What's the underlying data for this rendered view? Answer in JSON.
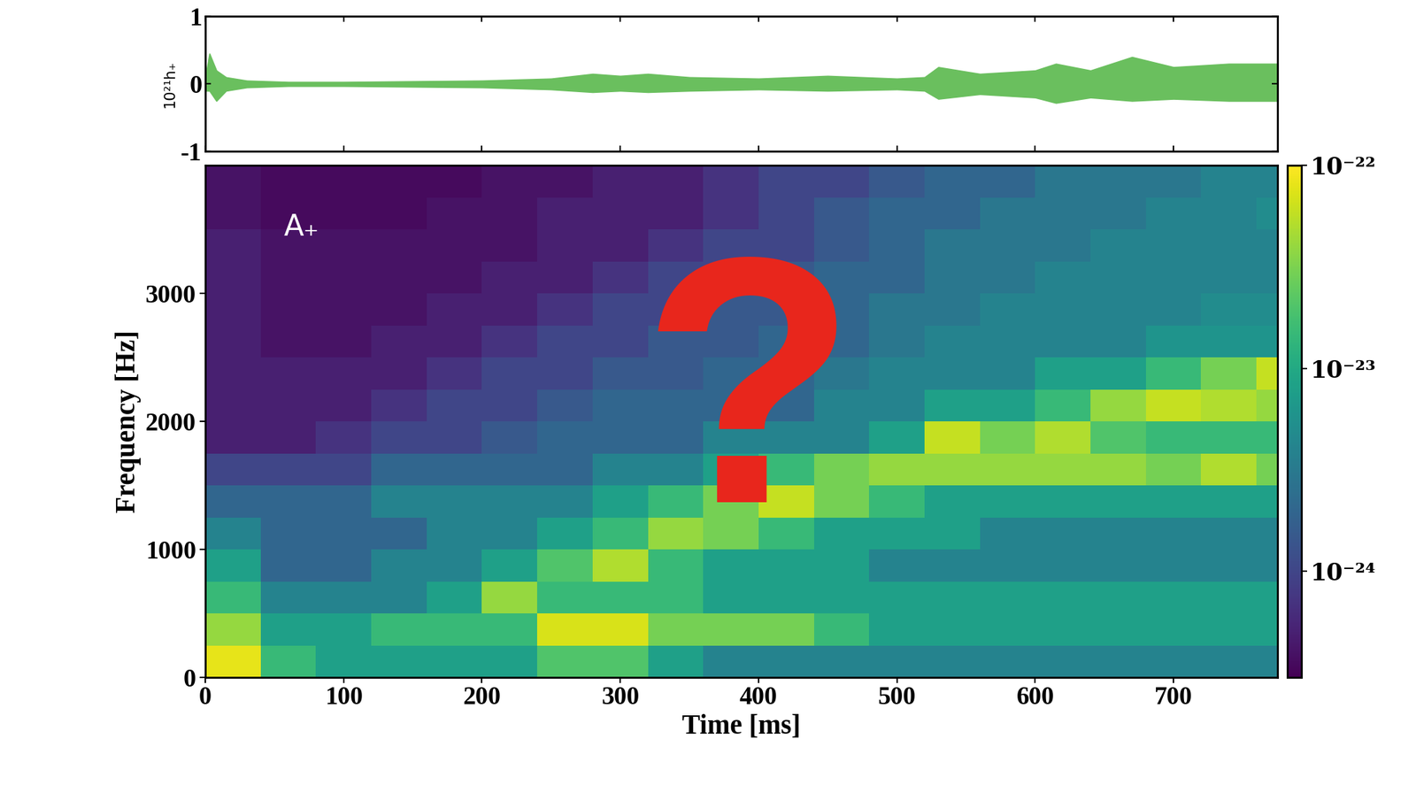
{
  "chart_data": [
    {
      "type": "line",
      "ylabel": "10²¹h₊",
      "x": [
        0,
        3,
        8,
        15,
        30,
        60,
        100,
        150,
        200,
        250,
        280,
        300,
        320,
        350,
        400,
        450,
        500,
        520,
        530,
        560,
        600,
        615,
        640,
        670,
        700,
        740,
        775
      ],
      "upper": [
        0.1,
        0.45,
        0.2,
        0.1,
        0.05,
        0.03,
        0.03,
        0.04,
        0.05,
        0.08,
        0.15,
        0.12,
        0.15,
        0.1,
        0.08,
        0.12,
        0.08,
        0.1,
        0.25,
        0.15,
        0.2,
        0.3,
        0.2,
        0.4,
        0.25,
        0.3,
        0.3
      ],
      "lower": [
        -0.1,
        -0.1,
        -0.25,
        -0.1,
        -0.05,
        -0.03,
        -0.03,
        -0.04,
        -0.05,
        -0.08,
        -0.12,
        -0.1,
        -0.12,
        -0.1,
        -0.08,
        -0.1,
        -0.08,
        -0.1,
        -0.22,
        -0.15,
        -0.2,
        -0.28,
        -0.2,
        -0.25,
        -0.22,
        -0.25,
        -0.25
      ],
      "color": "#6abf5e",
      "xlim": [
        0,
        775
      ],
      "xticks": [
        0,
        100,
        200,
        300,
        400,
        500,
        600,
        700
      ],
      "ylim": [
        -1,
        1
      ],
      "yticks": [
        -1,
        0,
        1
      ],
      "tick_labels": "y"
    },
    {
      "type": "heatmap",
      "xlabel": "Time [ms]",
      "ylabel": "Frequency [Hz]",
      "x_edges": [
        0,
        40,
        80,
        120,
        160,
        200,
        240,
        280,
        320,
        360,
        400,
        440,
        480,
        520,
        560,
        600,
        640,
        680,
        720,
        760,
        775
      ],
      "y_edges": [
        0,
        250,
        500,
        750,
        1000,
        1250,
        1500,
        1750,
        2000,
        2250,
        2500,
        2750,
        3000,
        3250,
        3500,
        3750,
        4000
      ],
      "cells": [
        [
          8e-23,
          1.5e-23,
          8e-24,
          8e-24,
          8e-24,
          8e-24,
          2e-23,
          2e-23,
          8e-24,
          4e-24,
          4e-24,
          4e-24,
          4e-24,
          4e-24,
          4e-24,
          4e-24,
          4e-24,
          4e-24,
          4e-24,
          4e-24
        ],
        [
          4e-23,
          8e-24,
          8e-24,
          1.5e-23,
          1.5e-23,
          1.5e-23,
          7e-23,
          7e-23,
          3e-23,
          3e-23,
          3e-23,
          1.5e-23,
          8e-24,
          8e-24,
          8e-24,
          8e-24,
          8e-24,
          8e-24,
          8e-24,
          8e-24
        ],
        [
          1.5e-23,
          4e-24,
          4e-24,
          4e-24,
          8e-24,
          4e-23,
          1.5e-23,
          1.5e-23,
          1.5e-23,
          8e-24,
          8e-24,
          8e-24,
          8e-24,
          8e-24,
          8e-24,
          8e-24,
          8e-24,
          8e-24,
          8e-24,
          8e-24
        ],
        [
          8e-24,
          2e-24,
          2e-24,
          4e-24,
          4e-24,
          8e-24,
          2e-23,
          5e-23,
          1.5e-23,
          8e-24,
          8e-24,
          8e-24,
          4e-24,
          4e-24,
          4e-24,
          4e-24,
          4e-24,
          4e-24,
          4e-24,
          4e-24
        ],
        [
          4e-24,
          2e-24,
          2e-24,
          2e-24,
          4e-24,
          4e-24,
          8e-24,
          1.5e-23,
          4e-23,
          3e-23,
          1.5e-23,
          8e-24,
          8e-24,
          8e-24,
          4e-24,
          4e-24,
          4e-24,
          4e-24,
          4e-24,
          4e-24
        ],
        [
          2e-24,
          2e-24,
          2e-24,
          4e-24,
          4e-24,
          4e-24,
          4e-24,
          8e-24,
          1.5e-23,
          3e-23,
          6e-23,
          3e-23,
          1.5e-23,
          8e-24,
          8e-24,
          8e-24,
          8e-24,
          8e-24,
          8e-24,
          8e-24
        ],
        [
          1e-24,
          1e-24,
          1e-24,
          2e-24,
          2e-24,
          2e-24,
          2e-24,
          4e-24,
          4e-24,
          8e-24,
          1.5e-23,
          3e-23,
          4e-23,
          4e-23,
          4e-23,
          4e-23,
          4e-23,
          3e-23,
          5e-23,
          3e-23
        ],
        [
          5e-25,
          5e-25,
          7e-25,
          1e-24,
          1e-24,
          1.5e-24,
          2e-24,
          2e-24,
          2e-24,
          4e-24,
          4e-24,
          4e-24,
          8e-24,
          6e-23,
          3e-23,
          5e-23,
          2e-23,
          1.5e-23,
          1.5e-23,
          1.5e-23
        ],
        [
          5e-25,
          5e-25,
          5e-25,
          7e-25,
          1e-24,
          1e-24,
          1.5e-24,
          2e-24,
          2e-24,
          2e-24,
          2e-24,
          4e-24,
          4e-24,
          8e-24,
          8e-24,
          1.5e-23,
          4e-23,
          6e-23,
          5e-23,
          4e-23
        ],
        [
          5e-25,
          5e-25,
          5e-25,
          5e-25,
          7e-25,
          1e-24,
          1e-24,
          1.5e-24,
          1.5e-24,
          2e-24,
          2e-24,
          3e-24,
          4e-24,
          4e-24,
          4e-24,
          8e-24,
          8e-24,
          1.5e-23,
          3e-23,
          6e-23
        ],
        [
          5e-25,
          4e-25,
          4e-25,
          5e-25,
          5e-25,
          7e-25,
          1e-24,
          1e-24,
          1.5e-24,
          1.5e-24,
          2e-24,
          2e-24,
          3e-24,
          4e-24,
          4e-24,
          4e-24,
          4e-24,
          6e-24,
          6e-24,
          6e-24
        ],
        [
          5e-25,
          4e-25,
          4e-25,
          4e-25,
          5e-25,
          5e-25,
          7e-25,
          1e-24,
          1e-24,
          1.5e-24,
          1.5e-24,
          2e-24,
          3e-24,
          3e-24,
          4e-24,
          4e-24,
          4e-24,
          4e-24,
          5e-24,
          5e-24
        ],
        [
          5e-25,
          4e-25,
          4e-25,
          4e-25,
          4e-25,
          5e-25,
          5e-25,
          7e-25,
          1e-24,
          1e-24,
          1.5e-24,
          2e-24,
          2e-24,
          3e-24,
          3e-24,
          4e-24,
          4e-24,
          4e-24,
          4e-24,
          4e-24
        ],
        [
          5e-25,
          4e-25,
          4e-25,
          4e-25,
          4e-25,
          4e-25,
          5e-25,
          5e-25,
          7e-25,
          1e-24,
          1e-24,
          1.5e-24,
          2e-24,
          3e-24,
          3e-24,
          3e-24,
          4e-24,
          4e-24,
          4e-24,
          4e-24
        ],
        [
          4e-25,
          3.5e-25,
          3.5e-25,
          3.5e-25,
          4e-25,
          4e-25,
          5e-25,
          5e-25,
          5e-25,
          7e-25,
          1e-24,
          1.5e-24,
          2e-24,
          2e-24,
          3e-24,
          3e-24,
          3e-24,
          4e-24,
          4e-24,
          5e-24
        ],
        [
          4e-25,
          3.5e-25,
          3.5e-25,
          3.5e-25,
          3.5e-25,
          4e-25,
          4e-25,
          5e-25,
          5e-25,
          7e-25,
          1e-24,
          1e-24,
          1.5e-24,
          2e-24,
          2e-24,
          3e-24,
          3e-24,
          3e-24,
          4e-24,
          4e-24
        ]
      ],
      "colorbar": {
        "range": [
          3e-25,
          1e-22
        ],
        "ticks": [
          {
            "value": 1e-24,
            "label": "10⁻²⁴"
          },
          {
            "value": 1e-23,
            "label": "10⁻²³"
          },
          {
            "value": 1e-22,
            "label": "10⁻²²"
          }
        ]
      },
      "xlim": [
        0,
        775
      ],
      "xticks": [
        0,
        100,
        200,
        300,
        400,
        500,
        600,
        700
      ],
      "ylim": [
        0,
        4000
      ],
      "yticks": [
        0,
        1000,
        2000,
        3000
      ],
      "annotations": [
        {
          "text": "A₊",
          "color": "#ffffff"
        },
        {
          "text": "?",
          "color": "#e8261c"
        }
      ]
    }
  ]
}
